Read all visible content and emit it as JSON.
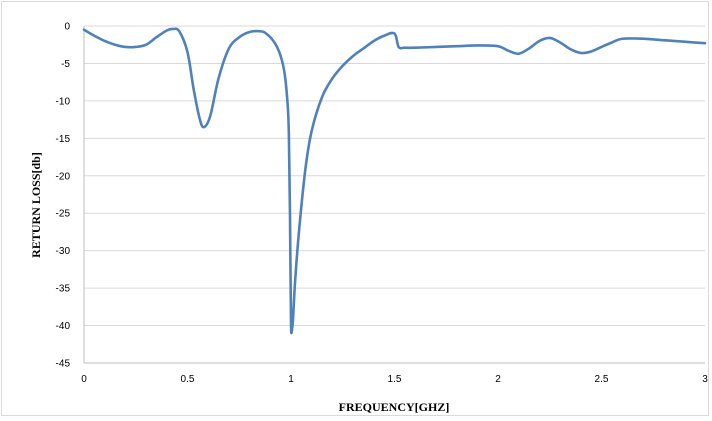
{
  "chart_data": {
    "type": "line",
    "title": "",
    "xlabel": "FREQUENCY[GHZ]",
    "ylabel": "RETURN LOSS[db]",
    "xlim": [
      0,
      3
    ],
    "ylim": [
      -45,
      0
    ],
    "x_ticks": [
      "0",
      "0.5",
      "1",
      "1.5",
      "2",
      "2.5",
      "3"
    ],
    "y_ticks": [
      "0",
      "-5",
      "-10",
      "-15",
      "-20",
      "-25",
      "-30",
      "-35",
      "-40",
      "-45"
    ],
    "grid": true,
    "line_color": "#4f81bd",
    "series": [
      {
        "x": [
          0,
          0.05,
          0.1,
          0.15,
          0.2,
          0.25,
          0.3,
          0.35,
          0.4,
          0.43,
          0.46,
          0.5,
          0.53,
          0.56,
          0.58,
          0.61,
          0.65,
          0.7,
          0.75,
          0.8,
          0.85,
          0.88,
          0.92,
          0.95,
          0.97,
          0.985,
          0.99,
          0.995,
          1.0,
          1.005,
          1.01,
          1.02,
          1.04,
          1.07,
          1.1,
          1.15,
          1.2,
          1.25,
          1.3,
          1.35,
          1.4,
          1.45,
          1.5,
          1.52,
          1.55,
          1.6,
          1.7,
          1.8,
          1.9,
          2.0,
          2.05,
          2.1,
          2.15,
          2.2,
          2.25,
          2.3,
          2.35,
          2.4,
          2.45,
          2.5,
          2.55,
          2.6,
          2.7,
          2.8,
          2.9,
          3.0
        ],
        "y": [
          -0.5,
          -1.3,
          -2.0,
          -2.5,
          -2.8,
          -2.8,
          -2.5,
          -1.5,
          -0.6,
          -0.4,
          -0.7,
          -3.5,
          -8.5,
          -12.5,
          -13.5,
          -12.0,
          -7.0,
          -3.0,
          -1.5,
          -0.8,
          -0.7,
          -1.0,
          -2.2,
          -4.0,
          -6.5,
          -11.0,
          -15.0,
          -25.0,
          -39.5,
          -40.5,
          -39.0,
          -34.0,
          -27.0,
          -19.0,
          -14.0,
          -9.5,
          -7.0,
          -5.3,
          -4.0,
          -3.0,
          -2.0,
          -1.3,
          -1.0,
          -2.8,
          -2.9,
          -2.9,
          -2.8,
          -2.7,
          -2.6,
          -2.7,
          -3.3,
          -3.7,
          -3.0,
          -2.0,
          -1.6,
          -2.2,
          -3.1,
          -3.6,
          -3.4,
          -2.8,
          -2.2,
          -1.7,
          -1.7,
          -1.9,
          -2.1,
          -2.3
        ]
      }
    ]
  }
}
